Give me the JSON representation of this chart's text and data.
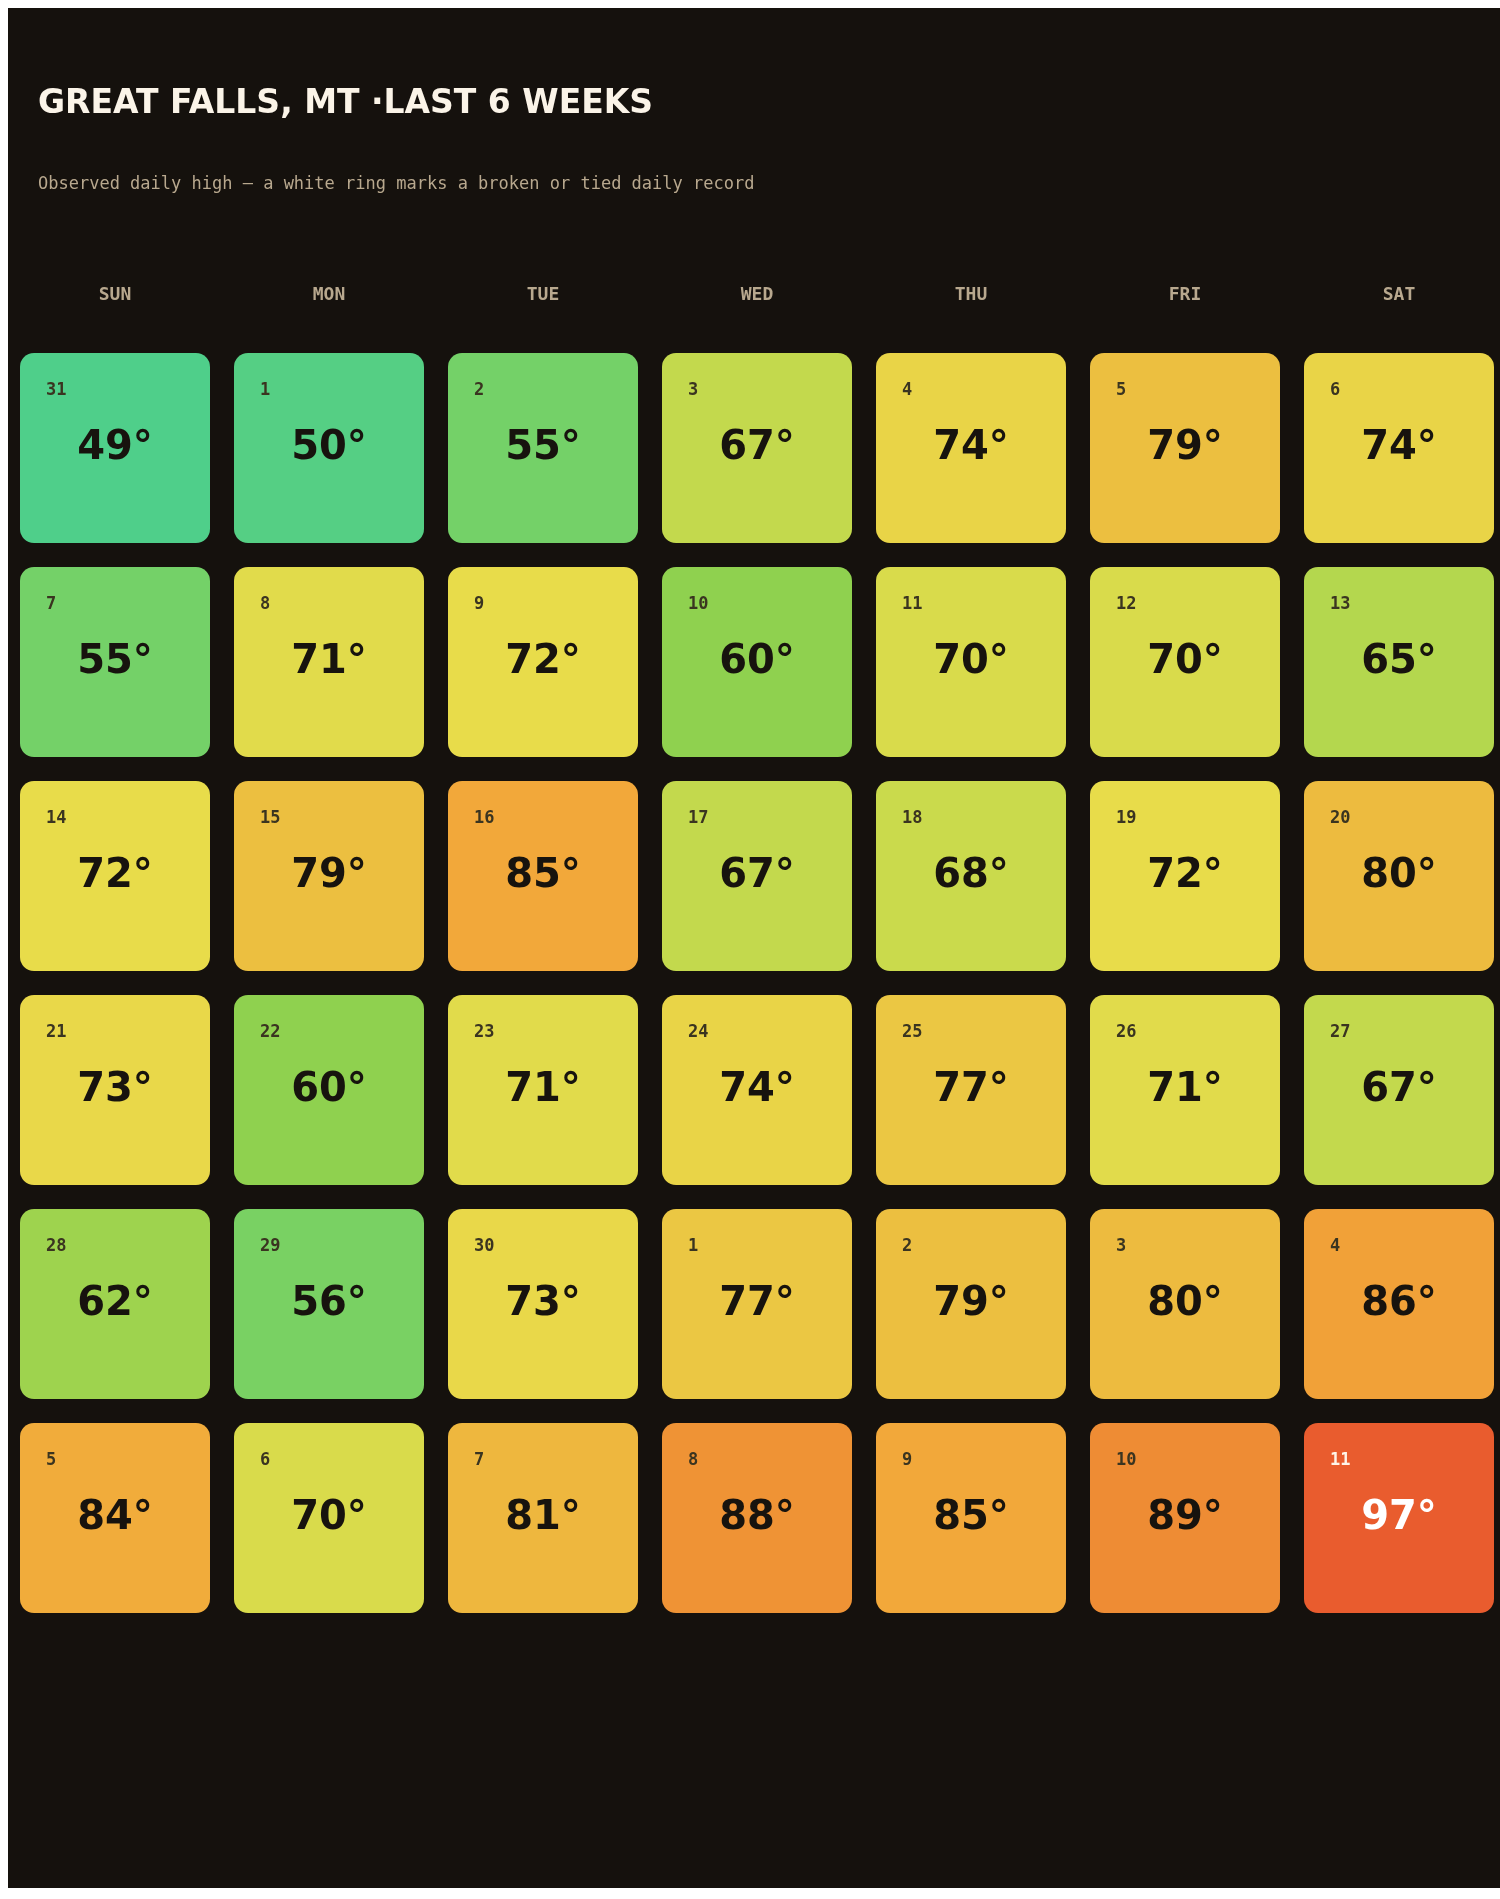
{
  "chart_data": {
    "type": "heatmap",
    "title": "GREAT FALLS, MT ·LAST 6 WEEKS",
    "subtitle": "Observed daily high — a white ring marks a broken or tied daily record",
    "categories": [
      "SUN",
      "MON",
      "TUE",
      "WED",
      "THU",
      "FRI",
      "SAT"
    ],
    "y_categories": [
      null,
      null,
      null,
      null,
      null,
      null
    ],
    "cells": [
      [
        49,
        50,
        55,
        67,
        74,
        79,
        74
      ],
      [
        55,
        71,
        72,
        60,
        70,
        70,
        65
      ],
      [
        72,
        79,
        85,
        67,
        68,
        72,
        80
      ],
      [
        73,
        60,
        71,
        74,
        77,
        71,
        67
      ],
      [
        62,
        56,
        73,
        77,
        79,
        80,
        86
      ],
      [
        84,
        70,
        81,
        88,
        85,
        89,
        97
      ]
    ],
    "cell_labels": [
      [
        "49°",
        "50°",
        "55°",
        "67°",
        "74°",
        "79°",
        "74°"
      ],
      [
        "55°",
        "71°",
        "72°",
        "60°",
        "70°",
        "70°",
        "65°"
      ],
      [
        "72°",
        "79°",
        "85°",
        "67°",
        "68°",
        "72°",
        "80°"
      ],
      [
        "73°",
        "60°",
        "71°",
        "74°",
        "77°",
        "71°",
        "67°"
      ],
      [
        "62°",
        "56°",
        "73°",
        "77°",
        "79°",
        "80°",
        "86°"
      ],
      [
        "84°",
        "70°",
        "81°",
        "88°",
        "85°",
        "89°",
        "97°"
      ]
    ],
    "annotations": [
      "31",
      "1",
      "2",
      "3",
      "4",
      "5",
      "6",
      "7",
      "8",
      "9",
      "10",
      "11",
      "12",
      "13",
      "14",
      "15",
      "16",
      "17",
      "18",
      "19",
      "20",
      "21",
      "22",
      "23",
      "24",
      "25",
      "26",
      "27",
      "28",
      "29",
      "30",
      "1",
      "2",
      "3",
      "4",
      "5",
      "6",
      "7",
      "8",
      "9",
      "10",
      "11"
    ]
  }
}
